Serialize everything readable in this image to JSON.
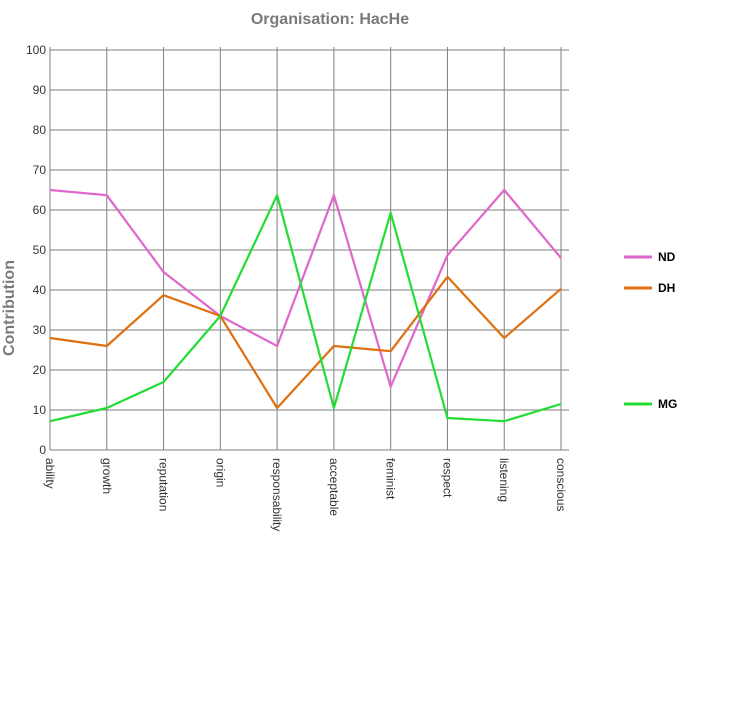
{
  "chart_data": {
    "type": "line",
    "title": "Organisation: HacHe",
    "ylabel": "Contribution",
    "xlabel": "",
    "ylim": [
      0,
      100
    ],
    "yticks": [
      0,
      10,
      20,
      30,
      40,
      50,
      60,
      70,
      80,
      90,
      100
    ],
    "grid": true,
    "legend_position": "right",
    "categories": [
      "ability",
      "growth",
      "reputation",
      "origin",
      "responsability",
      "acceptable",
      "feminist",
      "respect",
      "listening",
      "conscious"
    ],
    "series": [
      {
        "name": "ND",
        "color": "#e066cc",
        "values": [
          65,
          63.7,
          44.5,
          33.5,
          26,
          63.7,
          15.8,
          48.7,
          65,
          48
        ]
      },
      {
        "name": "DH",
        "color": "#e0700f",
        "values": [
          28,
          26,
          38.7,
          33.5,
          10.5,
          26,
          24.7,
          43.3,
          28,
          40.3
        ]
      },
      {
        "name": "MG",
        "color": "#22dd33",
        "values": [
          7.2,
          10.5,
          17,
          33.5,
          63.7,
          10.5,
          59.3,
          8,
          7.2,
          11.5
        ]
      }
    ]
  }
}
